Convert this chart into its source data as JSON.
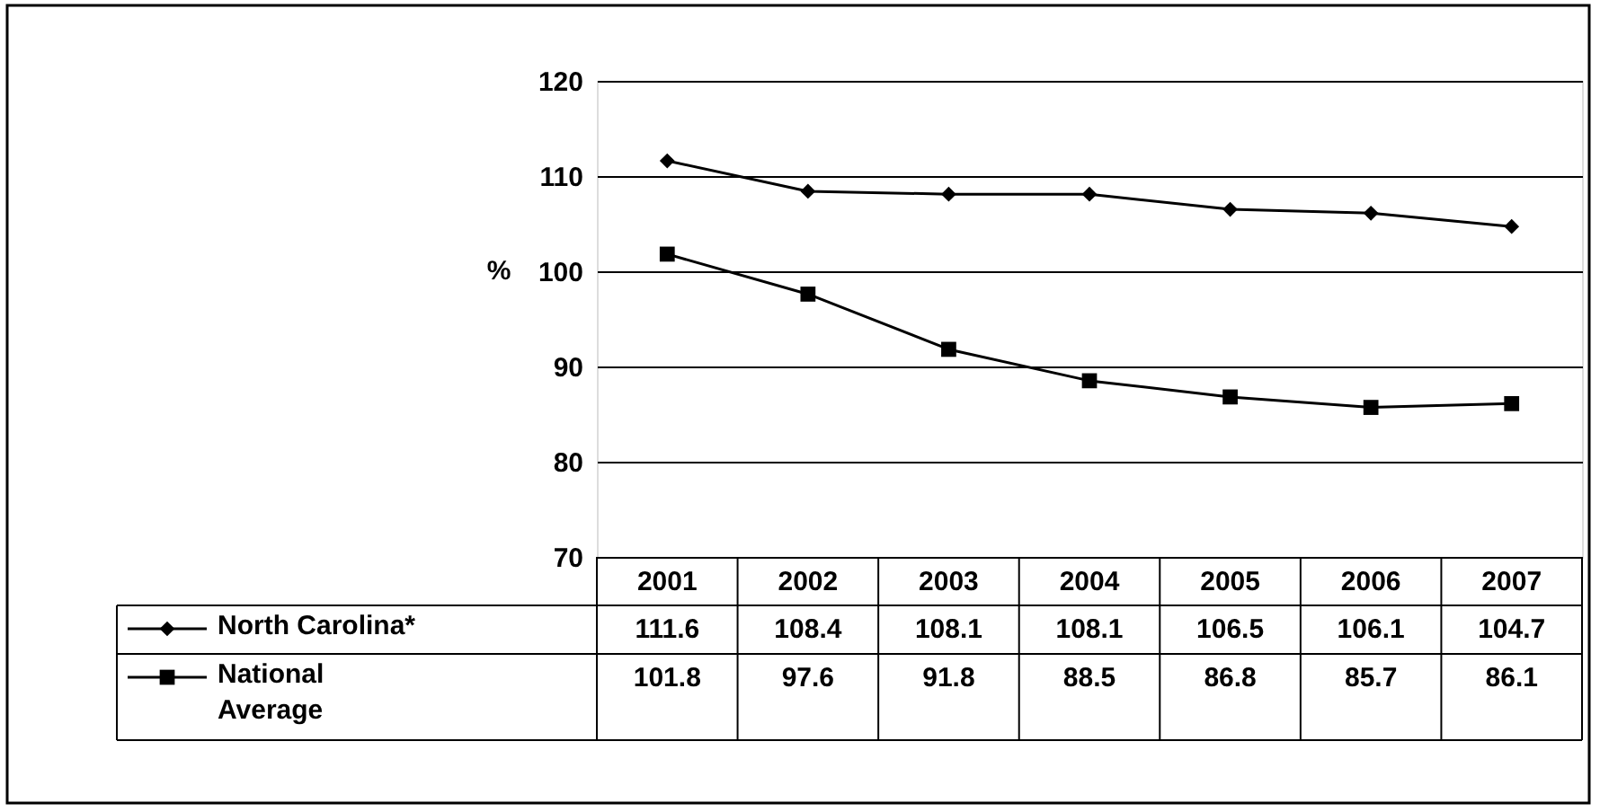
{
  "chart_data": {
    "type": "line",
    "categories": [
      "2001",
      "2002",
      "2003",
      "2004",
      "2005",
      "2006",
      "2007"
    ],
    "ylabel": "%",
    "ylim": [
      70,
      120
    ],
    "yticks": [
      70,
      80,
      90,
      100,
      110,
      120
    ],
    "grid": "y",
    "legend": "bottom",
    "data_labels": true,
    "series": [
      {
        "name": "North Carolina*",
        "color": "#000000",
        "marker": "diamond",
        "values": [
          111.6,
          108.4,
          108.1,
          108.1,
          106.5,
          106.1,
          104.7
        ]
      },
      {
        "name": "National Average",
        "color": "#000000",
        "marker": "square",
        "values": [
          101.8,
          97.6,
          91.8,
          88.5,
          86.8,
          85.7,
          86.1
        ]
      }
    ]
  }
}
